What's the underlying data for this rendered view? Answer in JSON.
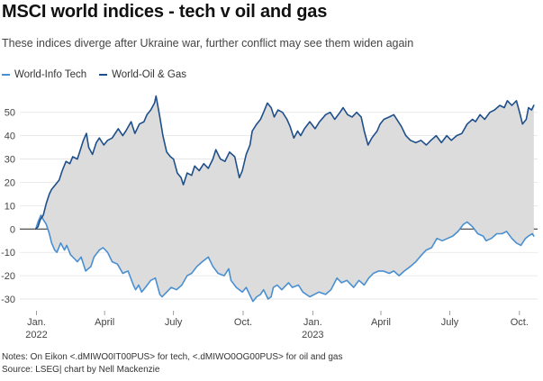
{
  "header": {
    "title": "MSCI world indices - tech v oil and gas",
    "subtitle": "These indices diverge after Ukraine war, further conflict may see them widen again"
  },
  "footer": {
    "notes": "Notes: On Eikon <.dMIWO0IT00PUS> for tech, <.dMIWO0OG00PUS> for oil and gas",
    "source": "Source: LSEG| chart by Nell Mackenzie"
  },
  "chart_data": {
    "type": "line",
    "title": "MSCI world indices - tech v oil and gas",
    "xlabel": "",
    "ylabel": "",
    "ylim": [
      -35,
      58
    ],
    "yticks": [
      -30,
      -20,
      -10,
      0,
      10,
      20,
      30,
      40,
      50
    ],
    "xlim": [
      "2021-12-10",
      "2023-10-25"
    ],
    "xticks": [
      {
        "date": "2022-01-01",
        "label": "Jan.",
        "sublabel": "2022"
      },
      {
        "date": "2022-04-01",
        "label": "April",
        "sublabel": ""
      },
      {
        "date": "2022-07-01",
        "label": "July",
        "sublabel": ""
      },
      {
        "date": "2022-10-01",
        "label": "Oct.",
        "sublabel": ""
      },
      {
        "date": "2023-01-01",
        "label": "Jan.",
        "sublabel": "2023"
      },
      {
        "date": "2023-04-01",
        "label": "April",
        "sublabel": ""
      },
      {
        "date": "2023-07-01",
        "label": "July",
        "sublabel": ""
      },
      {
        "date": "2023-10-01",
        "label": "Oct.",
        "sublabel": ""
      }
    ],
    "grid": true,
    "legend": "top-left",
    "fill_between": true,
    "series": [
      {
        "name": "World-Info Tech",
        "color": "#4a8fd0",
        "points": [
          [
            "2021-12-31",
            0
          ],
          [
            "2022-01-03",
            3
          ],
          [
            "2022-01-07",
            6
          ],
          [
            "2022-01-10",
            4
          ],
          [
            "2022-01-14",
            2
          ],
          [
            "2022-01-18",
            -2
          ],
          [
            "2022-01-21",
            -6
          ],
          [
            "2022-01-25",
            -9
          ],
          [
            "2022-01-28",
            -10
          ],
          [
            "2022-02-02",
            -6
          ],
          [
            "2022-02-07",
            -9
          ],
          [
            "2022-02-10",
            -7
          ],
          [
            "2022-02-15",
            -11
          ],
          [
            "2022-02-21",
            -13
          ],
          [
            "2022-02-24",
            -14
          ],
          [
            "2022-03-01",
            -12
          ],
          [
            "2022-03-07",
            -18
          ],
          [
            "2022-03-14",
            -16
          ],
          [
            "2022-03-18",
            -12
          ],
          [
            "2022-03-25",
            -9
          ],
          [
            "2022-03-30",
            -8
          ],
          [
            "2022-04-05",
            -10
          ],
          [
            "2022-04-11",
            -14
          ],
          [
            "2022-04-18",
            -15
          ],
          [
            "2022-04-25",
            -19
          ],
          [
            "2022-05-02",
            -18
          ],
          [
            "2022-05-09",
            -24
          ],
          [
            "2022-05-12",
            -26
          ],
          [
            "2022-05-16",
            -24
          ],
          [
            "2022-05-20",
            -27
          ],
          [
            "2022-05-25",
            -25
          ],
          [
            "2022-06-01",
            -22
          ],
          [
            "2022-06-07",
            -21
          ],
          [
            "2022-06-13",
            -28
          ],
          [
            "2022-06-16",
            -29
          ],
          [
            "2022-06-22",
            -27
          ],
          [
            "2022-06-28",
            -25
          ],
          [
            "2022-07-05",
            -26
          ],
          [
            "2022-07-12",
            -24
          ],
          [
            "2022-07-19",
            -20
          ],
          [
            "2022-07-25",
            -19
          ],
          [
            "2022-08-01",
            -16
          ],
          [
            "2022-08-08",
            -14
          ],
          [
            "2022-08-16",
            -12
          ],
          [
            "2022-08-22",
            -16
          ],
          [
            "2022-08-29",
            -19
          ],
          [
            "2022-09-06",
            -20
          ],
          [
            "2022-09-12",
            -17
          ],
          [
            "2022-09-15",
            -22
          ],
          [
            "2022-09-22",
            -25
          ],
          [
            "2022-09-30",
            -27
          ],
          [
            "2022-10-05",
            -25
          ],
          [
            "2022-10-11",
            -29
          ],
          [
            "2022-10-14",
            -31
          ],
          [
            "2022-10-19",
            -29
          ],
          [
            "2022-10-24",
            -28
          ],
          [
            "2022-10-28",
            -26
          ],
          [
            "2022-11-03",
            -30
          ],
          [
            "2022-11-07",
            -29
          ],
          [
            "2022-11-10",
            -25
          ],
          [
            "2022-11-15",
            -24
          ],
          [
            "2022-11-21",
            -26
          ],
          [
            "2022-11-30",
            -23
          ],
          [
            "2022-12-05",
            -25
          ],
          [
            "2022-12-13",
            -24
          ],
          [
            "2022-12-19",
            -27
          ],
          [
            "2022-12-28",
            -29
          ],
          [
            "2023-01-03",
            -28
          ],
          [
            "2023-01-09",
            -27
          ],
          [
            "2023-01-18",
            -28
          ],
          [
            "2023-01-25",
            -26
          ],
          [
            "2023-02-02",
            -21
          ],
          [
            "2023-02-08",
            -23
          ],
          [
            "2023-02-15",
            -22
          ],
          [
            "2023-02-24",
            -25
          ],
          [
            "2023-03-03",
            -22
          ],
          [
            "2023-03-10",
            -24
          ],
          [
            "2023-03-16",
            -21
          ],
          [
            "2023-03-22",
            -19
          ],
          [
            "2023-03-29",
            -18
          ],
          [
            "2023-04-04",
            -18
          ],
          [
            "2023-04-12",
            -19
          ],
          [
            "2023-04-18",
            -18
          ],
          [
            "2023-04-25",
            -20
          ],
          [
            "2023-05-02",
            -18
          ],
          [
            "2023-05-10",
            -16
          ],
          [
            "2023-05-17",
            -14
          ],
          [
            "2023-05-25",
            -11
          ],
          [
            "2023-05-31",
            -9
          ],
          [
            "2023-06-07",
            -8
          ],
          [
            "2023-06-14",
            -4
          ],
          [
            "2023-06-21",
            -5
          ],
          [
            "2023-06-28",
            -4
          ],
          [
            "2023-07-05",
            -3
          ],
          [
            "2023-07-12",
            -1
          ],
          [
            "2023-07-19",
            2
          ],
          [
            "2023-07-24",
            3
          ],
          [
            "2023-07-31",
            1
          ],
          [
            "2023-08-07",
            -2
          ],
          [
            "2023-08-14",
            -3
          ],
          [
            "2023-08-18",
            -5
          ],
          [
            "2023-08-25",
            -4
          ],
          [
            "2023-09-01",
            -2
          ],
          [
            "2023-09-08",
            -2
          ],
          [
            "2023-09-14",
            -1
          ],
          [
            "2023-09-21",
            -4
          ],
          [
            "2023-09-27",
            -6
          ],
          [
            "2023-10-03",
            -7
          ],
          [
            "2023-10-09",
            -4
          ],
          [
            "2023-10-13",
            -3
          ],
          [
            "2023-10-18",
            -2
          ],
          [
            "2023-10-20",
            -3
          ]
        ]
      },
      {
        "name": "World-Oil & Gas",
        "color": "#1f4f8a",
        "points": [
          [
            "2021-12-31",
            0
          ],
          [
            "2022-01-03",
            1
          ],
          [
            "2022-01-06",
            4
          ],
          [
            "2022-01-10",
            6
          ],
          [
            "2022-01-14",
            11
          ],
          [
            "2022-01-18",
            15
          ],
          [
            "2022-01-21",
            17
          ],
          [
            "2022-01-26",
            19
          ],
          [
            "2022-01-31",
            21
          ],
          [
            "2022-02-04",
            25
          ],
          [
            "2022-02-09",
            29
          ],
          [
            "2022-02-14",
            28
          ],
          [
            "2022-02-18",
            31
          ],
          [
            "2022-02-24",
            30
          ],
          [
            "2022-03-01",
            35
          ],
          [
            "2022-03-04",
            38
          ],
          [
            "2022-03-08",
            41
          ],
          [
            "2022-03-11",
            35
          ],
          [
            "2022-03-16",
            32
          ],
          [
            "2022-03-21",
            37
          ],
          [
            "2022-03-25",
            39
          ],
          [
            "2022-03-31",
            36
          ],
          [
            "2022-04-05",
            38
          ],
          [
            "2022-04-11",
            39
          ],
          [
            "2022-04-19",
            43
          ],
          [
            "2022-04-25",
            40
          ],
          [
            "2022-04-29",
            42
          ],
          [
            "2022-05-06",
            46
          ],
          [
            "2022-05-11",
            41
          ],
          [
            "2022-05-17",
            45
          ],
          [
            "2022-05-23",
            46
          ],
          [
            "2022-05-27",
            49
          ],
          [
            "2022-06-01",
            51
          ],
          [
            "2022-06-06",
            54
          ],
          [
            "2022-06-08",
            57
          ],
          [
            "2022-06-13",
            48
          ],
          [
            "2022-06-17",
            40
          ],
          [
            "2022-06-22",
            33
          ],
          [
            "2022-06-27",
            31
          ],
          [
            "2022-07-01",
            30
          ],
          [
            "2022-07-06",
            24
          ],
          [
            "2022-07-11",
            22
          ],
          [
            "2022-07-14",
            19
          ],
          [
            "2022-07-19",
            24
          ],
          [
            "2022-07-25",
            23
          ],
          [
            "2022-07-29",
            27
          ],
          [
            "2022-08-04",
            25
          ],
          [
            "2022-08-10",
            28
          ],
          [
            "2022-08-16",
            26
          ],
          [
            "2022-08-22",
            30
          ],
          [
            "2022-08-26",
            34
          ],
          [
            "2022-09-01",
            30
          ],
          [
            "2022-09-07",
            29
          ],
          [
            "2022-09-13",
            33
          ],
          [
            "2022-09-20",
            31
          ],
          [
            "2022-09-26",
            22
          ],
          [
            "2022-09-30",
            25
          ],
          [
            "2022-10-05",
            32
          ],
          [
            "2022-10-10",
            36
          ],
          [
            "2022-10-13",
            42
          ],
          [
            "2022-10-19",
            45
          ],
          [
            "2022-10-24",
            47
          ],
          [
            "2022-10-28",
            50
          ],
          [
            "2022-11-02",
            54
          ],
          [
            "2022-11-07",
            52
          ],
          [
            "2022-11-11",
            48
          ],
          [
            "2022-11-16",
            51
          ],
          [
            "2022-11-22",
            50
          ],
          [
            "2022-11-28",
            47
          ],
          [
            "2022-12-02",
            44
          ],
          [
            "2022-12-07",
            39
          ],
          [
            "2022-12-12",
            42
          ],
          [
            "2022-12-16",
            40
          ],
          [
            "2022-12-21",
            43
          ],
          [
            "2022-12-28",
            46
          ],
          [
            "2023-01-04",
            43
          ],
          [
            "2023-01-10",
            46
          ],
          [
            "2023-01-18",
            49
          ],
          [
            "2023-01-24",
            50
          ],
          [
            "2023-01-30",
            47
          ],
          [
            "2023-02-06",
            50
          ],
          [
            "2023-02-10",
            52
          ],
          [
            "2023-02-16",
            49
          ],
          [
            "2023-02-22",
            48
          ],
          [
            "2023-02-28",
            50
          ],
          [
            "2023-03-06",
            48
          ],
          [
            "2023-03-10",
            42
          ],
          [
            "2023-03-15",
            36
          ],
          [
            "2023-03-20",
            39
          ],
          [
            "2023-03-27",
            42
          ],
          [
            "2023-03-31",
            45
          ],
          [
            "2023-04-05",
            47
          ],
          [
            "2023-04-12",
            48
          ],
          [
            "2023-04-18",
            49
          ],
          [
            "2023-04-24",
            46
          ],
          [
            "2023-04-28",
            44
          ],
          [
            "2023-05-04",
            40
          ],
          [
            "2023-05-10",
            38
          ],
          [
            "2023-05-17",
            37
          ],
          [
            "2023-05-24",
            38
          ],
          [
            "2023-05-31",
            36
          ],
          [
            "2023-06-06",
            38
          ],
          [
            "2023-06-13",
            40
          ],
          [
            "2023-06-20",
            37
          ],
          [
            "2023-06-27",
            40
          ],
          [
            "2023-07-03",
            38
          ],
          [
            "2023-07-10",
            40
          ],
          [
            "2023-07-17",
            41
          ],
          [
            "2023-07-24",
            45
          ],
          [
            "2023-07-31",
            47
          ],
          [
            "2023-08-04",
            46
          ],
          [
            "2023-08-10",
            49
          ],
          [
            "2023-08-16",
            47
          ],
          [
            "2023-08-23",
            50
          ],
          [
            "2023-08-29",
            51
          ],
          [
            "2023-09-05",
            53
          ],
          [
            "2023-09-11",
            52
          ],
          [
            "2023-09-15",
            55
          ],
          [
            "2023-09-21",
            53
          ],
          [
            "2023-09-27",
            55
          ],
          [
            "2023-10-02",
            49
          ],
          [
            "2023-10-05",
            45
          ],
          [
            "2023-10-10",
            47
          ],
          [
            "2023-10-13",
            52
          ],
          [
            "2023-10-17",
            51
          ],
          [
            "2023-10-20",
            53
          ]
        ]
      }
    ]
  }
}
